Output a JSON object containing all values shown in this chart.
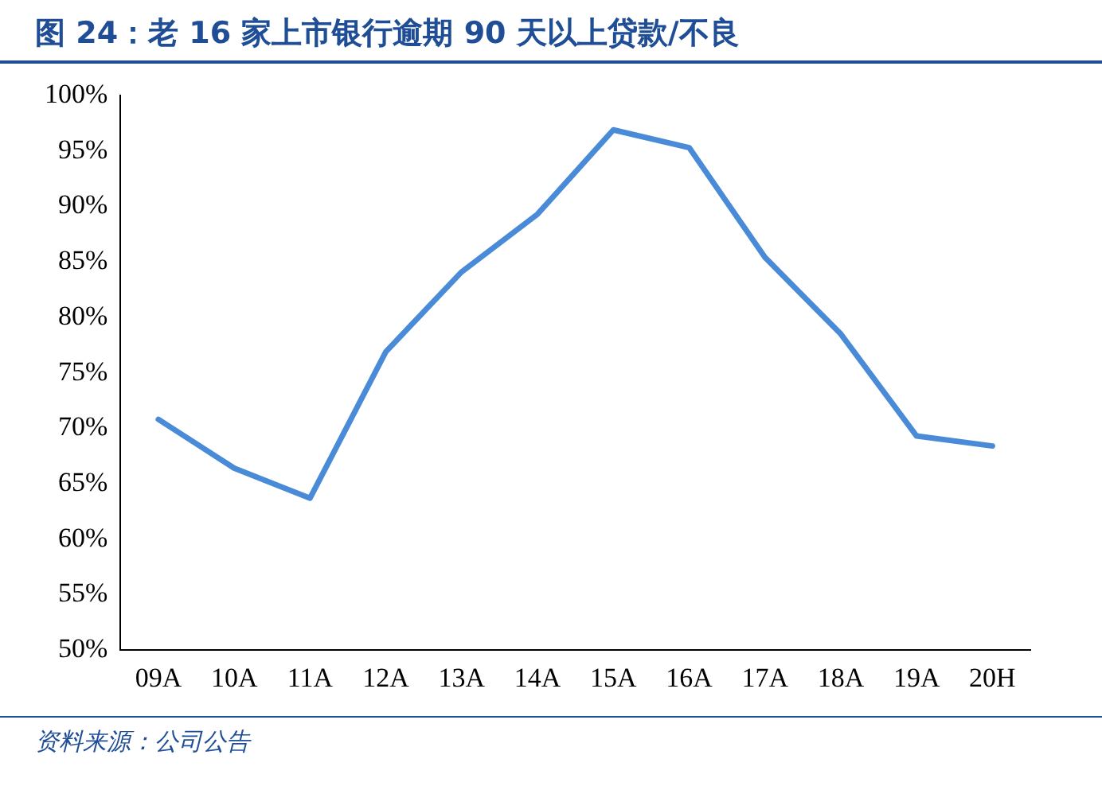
{
  "chart_data": {
    "type": "line",
    "title": "图 24：老 16 家上市银行逾期 90 天以上贷款/不良",
    "categories": [
      "09A",
      "10A",
      "11A",
      "12A",
      "13A",
      "14A",
      "15A",
      "16A",
      "17A",
      "18A",
      "19A",
      "20H"
    ],
    "series": [
      {
        "color": "#4a8bd8",
        "values": [
          70.8,
          66.4,
          63.7,
          76.9,
          84.1,
          89.3,
          96.9,
          95.3,
          85.4,
          78.5,
          69.3,
          68.4
        ]
      }
    ],
    "ylim": [
      50,
      100
    ],
    "yticks": [
      {
        "value": 50,
        "label": "50%"
      },
      {
        "value": 55,
        "label": "55%"
      },
      {
        "value": 60,
        "label": "60%"
      },
      {
        "value": 65,
        "label": "65%"
      },
      {
        "value": 70,
        "label": "70%"
      },
      {
        "value": 75,
        "label": "75%"
      },
      {
        "value": 80,
        "label": "80%"
      },
      {
        "value": 85,
        "label": "85%"
      },
      {
        "value": 90,
        "label": "90%"
      },
      {
        "value": 95,
        "label": "95%"
      },
      {
        "value": 100,
        "label": "100%"
      }
    ],
    "grid": false,
    "legend": false,
    "marker": "none",
    "line_style": "solid",
    "annotations": [
      "资料来源：公司公告"
    ]
  }
}
